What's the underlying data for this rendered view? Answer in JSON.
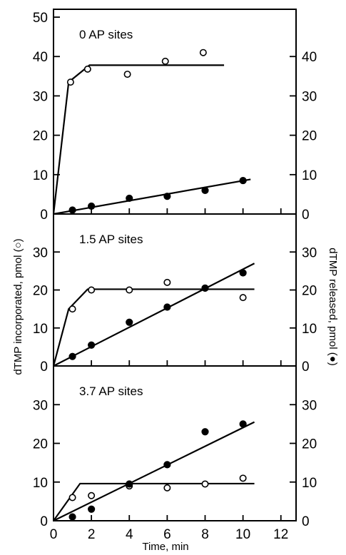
{
  "chart_data": {
    "type": "scatter",
    "x_axis": {
      "label": "Time, min",
      "ticks": [
        2,
        4,
        6,
        8,
        10,
        12
      ],
      "range": [
        0,
        12.8
      ]
    },
    "left_axis_label": "dTMP incorporated, pmol (○)",
    "right_axis_label": "dTMP released, pmol (●)",
    "panels": [
      {
        "title": "0 AP sites",
        "ylim": [
          0,
          52
        ],
        "left_ticks": [
          0,
          10,
          20,
          30,
          40,
          50
        ],
        "right_ticks": [
          0,
          10,
          20,
          30,
          40
        ],
        "incorporated": {
          "x": [
            0.9,
            1.8,
            3.9,
            5.9,
            7.9
          ],
          "y": [
            33.5,
            36.8,
            35.5,
            38.8,
            41
          ],
          "fit_line": [
            [
              0,
              0
            ],
            [
              0.8,
              33.5
            ],
            [
              1.9,
              37.8
            ],
            [
              9,
              37.8
            ]
          ]
        },
        "released": {
          "x": [
            1,
            2,
            4,
            6,
            8,
            10
          ],
          "y": [
            1,
            2,
            4,
            4.5,
            6,
            8.5
          ],
          "fit_line": [
            [
              0,
              0
            ],
            [
              10.4,
              8.8
            ]
          ]
        }
      },
      {
        "title": "1.5 AP sites",
        "ylim": [
          0,
          40
        ],
        "left_ticks": [
          0,
          10,
          20,
          30
        ],
        "right_ticks": [
          0,
          10,
          20,
          30
        ],
        "incorporated": {
          "x": [
            1,
            2,
            4,
            6,
            8,
            10
          ],
          "y": [
            15,
            20,
            20,
            22,
            20.5,
            18
          ],
          "fit_line": [
            [
              0,
              0
            ],
            [
              0.8,
              15
            ],
            [
              1.8,
              20.2
            ],
            [
              10.6,
              20.2
            ]
          ]
        },
        "released": {
          "x": [
            1,
            2,
            4,
            6,
            8,
            10
          ],
          "y": [
            2.5,
            5.5,
            11.5,
            15.5,
            20.5,
            24.5
          ],
          "fit_line": [
            [
              0,
              0
            ],
            [
              10.6,
              27
            ]
          ]
        }
      },
      {
        "title": "3.7 AP sites",
        "ylim": [
          0,
          40
        ],
        "left_ticks": [
          0,
          10,
          20,
          30
        ],
        "right_ticks": [
          0,
          10,
          20,
          30
        ],
        "incorporated": {
          "x": [
            1,
            2,
            4,
            6,
            8,
            10
          ],
          "y": [
            6,
            6.5,
            9,
            8.5,
            9.5,
            11
          ],
          "fit_line": [
            [
              0,
              0
            ],
            [
              1.4,
              9.6
            ],
            [
              10.6,
              9.6
            ]
          ]
        },
        "released": {
          "x": [
            1,
            2,
            4,
            6,
            8,
            10
          ],
          "y": [
            1,
            3,
            9.5,
            14.5,
            23,
            25
          ],
          "fit_line": [
            [
              0,
              0
            ],
            [
              10.6,
              25.5
            ]
          ]
        }
      }
    ]
  }
}
